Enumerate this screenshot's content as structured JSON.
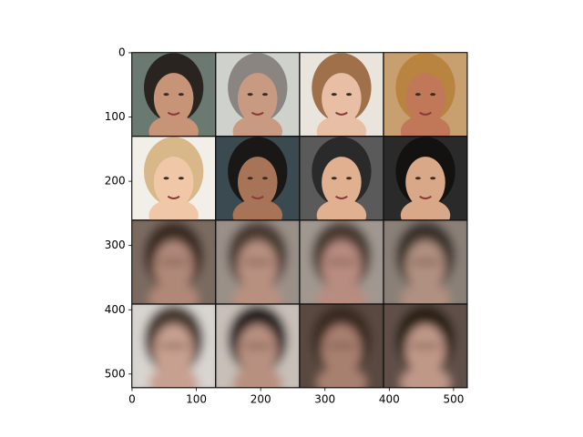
{
  "chart_data": {
    "type": "image",
    "xlim": [
      -0.5,
      521.5
    ],
    "ylim": [
      521.5,
      -0.5
    ],
    "xticks": [
      0,
      100,
      200,
      300,
      400,
      500
    ],
    "yticks": [
      0,
      100,
      200,
      300,
      400,
      500
    ]
  }
}
